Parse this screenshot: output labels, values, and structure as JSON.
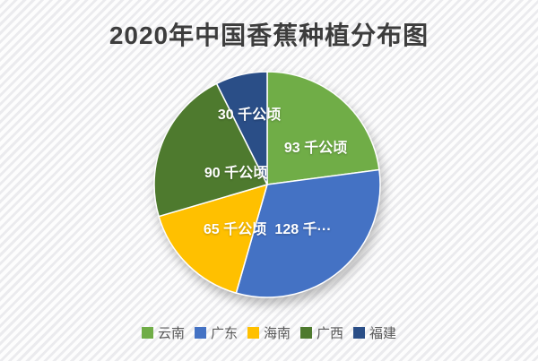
{
  "title": "2020年中国香蕉种植分布图",
  "chart_data": {
    "type": "pie",
    "title": "2020年中国香蕉种植分布图",
    "unit": "千公顷",
    "total": 406,
    "start_angle_deg": 0,
    "direction": "clockwise",
    "legend_position": "bottom",
    "slices": [
      {
        "key": "yunnan",
        "name": "云南",
        "value": 93,
        "label": "93 千公顷",
        "color": "#70AD47"
      },
      {
        "key": "guangdong",
        "name": "广东",
        "value": 128,
        "label": "128 千···",
        "color": "#4472C4"
      },
      {
        "key": "hainan",
        "name": "海南",
        "value": 65,
        "label": "65 千公顷",
        "color": "#FFC000"
      },
      {
        "key": "guangxi",
        "name": "广西",
        "value": 90,
        "label": "90 千公顷",
        "color": "#4E7A2E"
      },
      {
        "key": "fujian",
        "name": "福建",
        "value": 30,
        "label": "30 千公顷",
        "color": "#2A4E87"
      }
    ]
  }
}
